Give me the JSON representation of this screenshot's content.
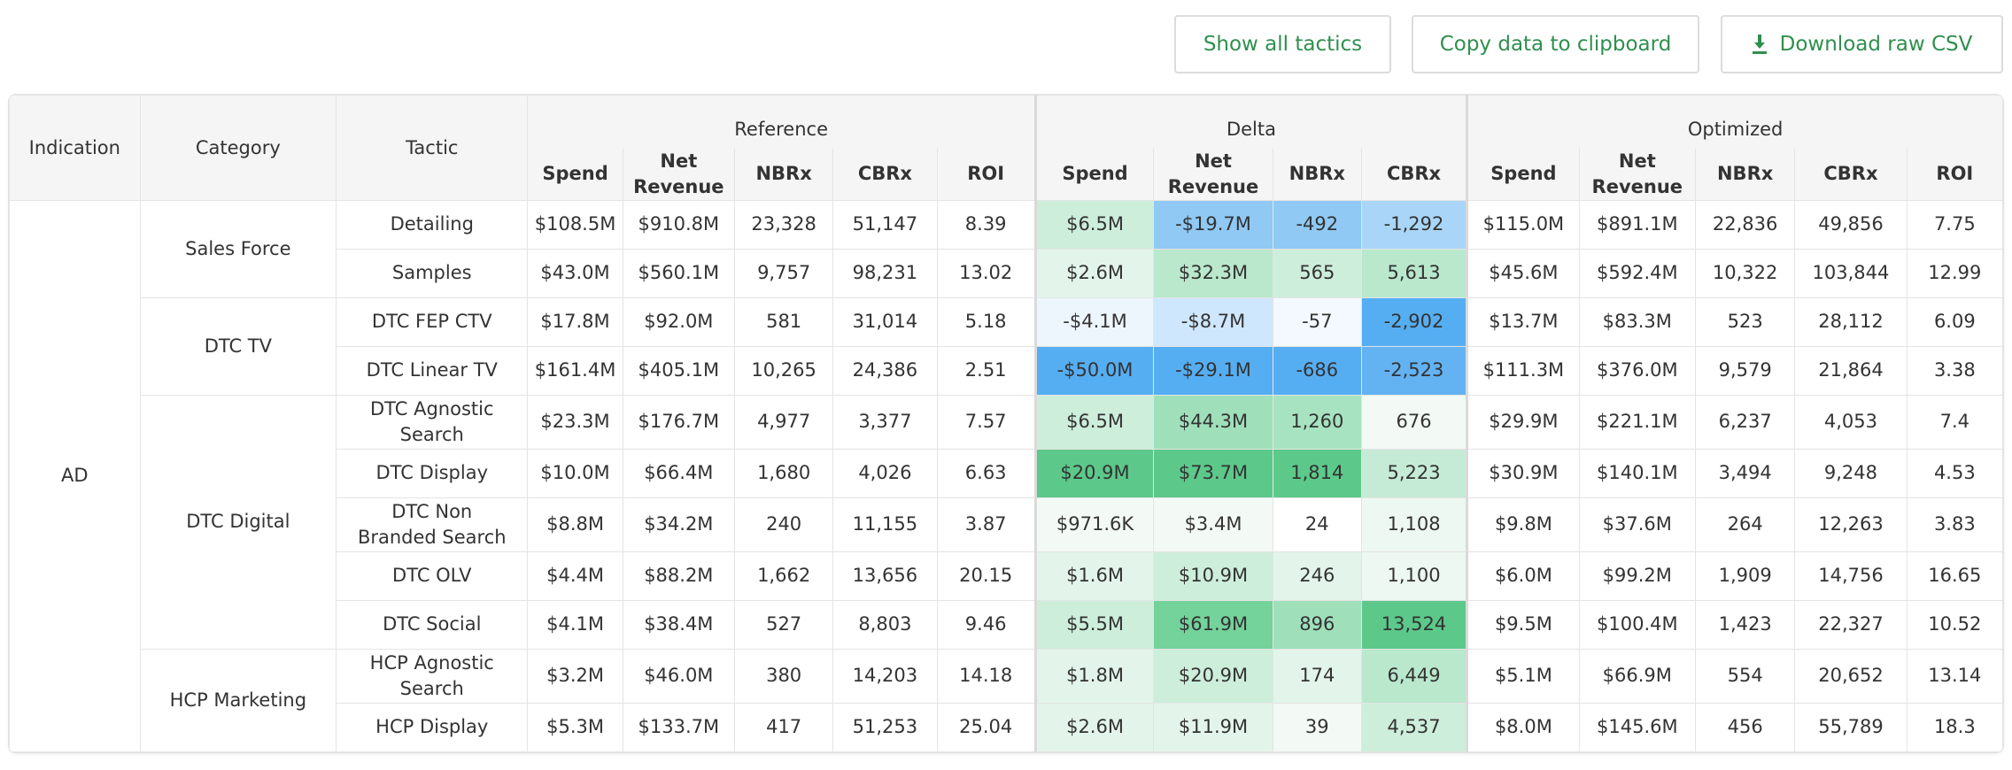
{
  "toolbar": {
    "show_all": "Show all tactics",
    "copy": "Copy data to clipboard",
    "download": "Download raw CSV",
    "download_icon": "download-icon"
  },
  "headers": {
    "indication": "Indication",
    "category": "Category",
    "tactic": "Tactic",
    "reference": "Reference",
    "delta": "Delta",
    "optimized": "Optimized",
    "spend": "Spend",
    "net_revenue": "Net Revenue",
    "nbrx": "NBRx",
    "cbrx": "CBRx",
    "roi": "ROI"
  },
  "indication": "AD",
  "categories": [
    "Sales Force",
    "DTC TV",
    "DTC Digital",
    "HCP Marketing"
  ],
  "rows": [
    {
      "tactic": "Detailing",
      "ref": [
        "$108.5M",
        "$910.8M",
        "23,328",
        "51,147",
        "8.39"
      ],
      "delta": [
        "$6.5M",
        "-$19.7M",
        "-492",
        "-1,292"
      ],
      "opt": [
        "$115.0M",
        "$891.1M",
        "22,836",
        "49,856",
        "7.75"
      ]
    },
    {
      "tactic": "Samples",
      "ref": [
        "$43.0M",
        "$560.1M",
        "9,757",
        "98,231",
        "13.02"
      ],
      "delta": [
        "$2.6M",
        "$32.3M",
        "565",
        "5,613"
      ],
      "opt": [
        "$45.6M",
        "$592.4M",
        "10,322",
        "103,844",
        "12.99"
      ]
    },
    {
      "tactic": "DTC FEP CTV",
      "ref": [
        "$17.8M",
        "$92.0M",
        "581",
        "31,014",
        "5.18"
      ],
      "delta": [
        "-$4.1M",
        "-$8.7M",
        "-57",
        "-2,902"
      ],
      "opt": [
        "$13.7M",
        "$83.3M",
        "523",
        "28,112",
        "6.09"
      ]
    },
    {
      "tactic": "DTC Linear TV",
      "ref": [
        "$161.4M",
        "$405.1M",
        "10,265",
        "24,386",
        "2.51"
      ],
      "delta": [
        "-$50.0M",
        "-$29.1M",
        "-686",
        "-2,523"
      ],
      "opt": [
        "$111.3M",
        "$376.0M",
        "9,579",
        "21,864",
        "3.38"
      ]
    },
    {
      "tactic": "DTC Agnostic Search",
      "ref": [
        "$23.3M",
        "$176.7M",
        "4,977",
        "3,377",
        "7.57"
      ],
      "delta": [
        "$6.5M",
        "$44.3M",
        "1,260",
        "676"
      ],
      "opt": [
        "$29.9M",
        "$221.1M",
        "6,237",
        "4,053",
        "7.4"
      ]
    },
    {
      "tactic": "DTC Display",
      "ref": [
        "$10.0M",
        "$66.4M",
        "1,680",
        "4,026",
        "6.63"
      ],
      "delta": [
        "$20.9M",
        "$73.7M",
        "1,814",
        "5,223"
      ],
      "opt": [
        "$30.9M",
        "$140.1M",
        "3,494",
        "9,248",
        "4.53"
      ]
    },
    {
      "tactic": "DTC Non Branded Search",
      "ref": [
        "$8.8M",
        "$34.2M",
        "240",
        "11,155",
        "3.87"
      ],
      "delta": [
        "$971.6K",
        "$3.4M",
        "24",
        "1,108"
      ],
      "opt": [
        "$9.8M",
        "$37.6M",
        "264",
        "12,263",
        "3.83"
      ]
    },
    {
      "tactic": "DTC OLV",
      "ref": [
        "$4.4M",
        "$88.2M",
        "1,662",
        "13,656",
        "20.15"
      ],
      "delta": [
        "$1.6M",
        "$10.9M",
        "246",
        "1,100"
      ],
      "opt": [
        "$6.0M",
        "$99.2M",
        "1,909",
        "14,756",
        "16.65"
      ]
    },
    {
      "tactic": "DTC Social",
      "ref": [
        "$4.1M",
        "$38.4M",
        "527",
        "8,803",
        "9.46"
      ],
      "delta": [
        "$5.5M",
        "$61.9M",
        "896",
        "13,524"
      ],
      "opt": [
        "$9.5M",
        "$100.4M",
        "1,423",
        "22,327",
        "10.52"
      ]
    },
    {
      "tactic": "HCP Agnostic Search",
      "ref": [
        "$3.2M",
        "$46.0M",
        "380",
        "14,203",
        "14.18"
      ],
      "delta": [
        "$1.8M",
        "$20.9M",
        "174",
        "6,449"
      ],
      "opt": [
        "$5.1M",
        "$66.9M",
        "554",
        "20,652",
        "13.14"
      ]
    },
    {
      "tactic": "HCP Display",
      "ref": [
        "$5.3M",
        "$133.7M",
        "417",
        "51,253",
        "25.04"
      ],
      "delta": [
        "$2.6M",
        "$11.9M",
        "39",
        "4,537"
      ],
      "opt": [
        "$8.0M",
        "$145.6M",
        "456",
        "55,789",
        "18.3"
      ]
    }
  ],
  "delta_colors": [
    [
      "#cdeedb",
      "#8fc9f4",
      "#8fc9f4",
      "#a9d6f8"
    ],
    [
      "#e3f5ea",
      "#b9e8cd",
      "#cdeedb",
      "#b9e8cd"
    ],
    [
      "#eef6fd",
      "#cfe7fc",
      "#f3f9fe",
      "#56aef2"
    ],
    [
      "#56aef2",
      "#56aef2",
      "#56aef2",
      "#63b3f3"
    ],
    [
      "#cdeedb",
      "#9fe0bb",
      "#a8e3c1",
      "#f3faf6"
    ],
    [
      "#5cc98a",
      "#5cc98a",
      "#5cc98a",
      "#c5ebd6"
    ],
    [
      "#f3faf6",
      "#f3faf6",
      "#ffffff",
      "#eef8f2"
    ],
    [
      "#e3f5ea",
      "#cdeedb",
      "#e3f5ea",
      "#eef8f2"
    ],
    [
      "#cdeedb",
      "#74d29b",
      "#9fe0bb",
      "#5cc98a"
    ],
    [
      "#e3f5ea",
      "#cdeedb",
      "#e3f5ea",
      "#b9e8cd"
    ],
    [
      "#e3f5ea",
      "#e3f5ea",
      "#f3faf6",
      "#cdeedb"
    ]
  ]
}
